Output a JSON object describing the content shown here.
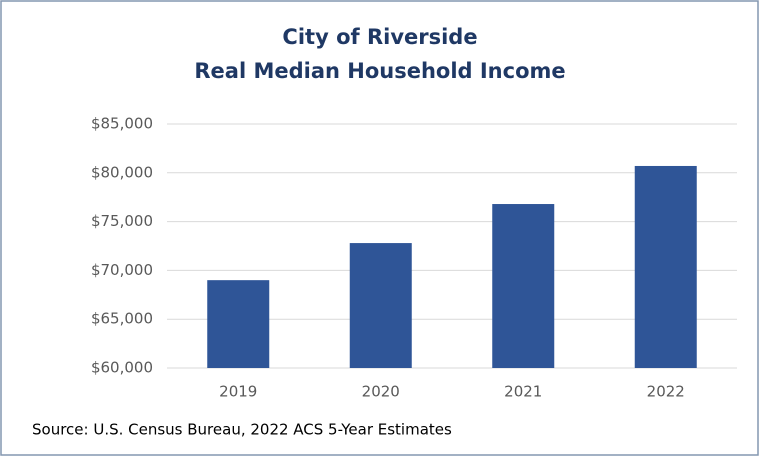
{
  "chart_data": {
    "type": "bar",
    "title": "City of Riverside",
    "subtitle": "Real Median Household Income",
    "source": "Source: U.S. Census Bureau, 2022 ACS 5-Year Estimates",
    "categories": [
      "2019",
      "2020",
      "2021",
      "2022"
    ],
    "values": [
      69000,
      72800,
      76800,
      80700
    ],
    "color": "#2f5597",
    "ylim": [
      60000,
      85000
    ],
    "yticks": [
      {
        "value": 60000,
        "label": "$60,000"
      },
      {
        "value": 65000,
        "label": "$65,000"
      },
      {
        "value": 70000,
        "label": "$70,000"
      },
      {
        "value": 75000,
        "label": "$75,000"
      },
      {
        "value": 80000,
        "label": "$80,000"
      },
      {
        "value": 85000,
        "label": "$85,000"
      }
    ],
    "grid": true
  }
}
